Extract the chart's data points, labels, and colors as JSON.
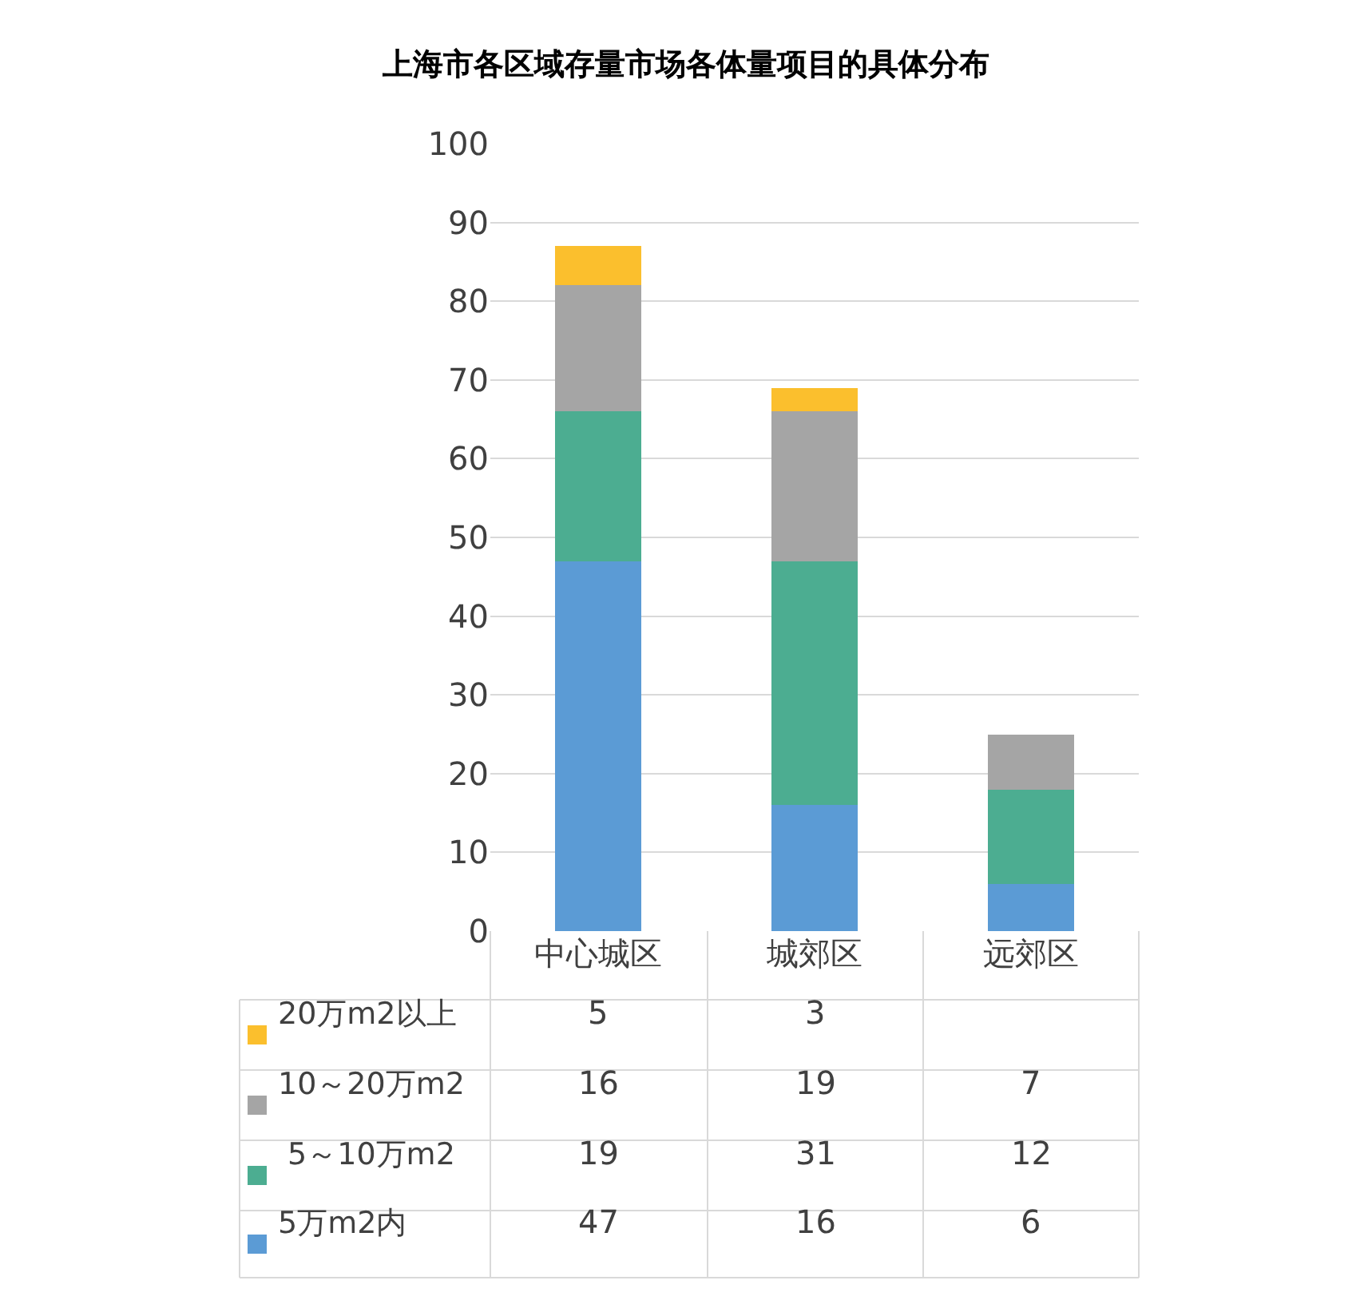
{
  "chart_data": {
    "type": "bar",
    "title": "上海市各区域存量市场各体量项目的具体分布",
    "stacked": true,
    "categories": [
      "中心城区",
      "城郊区",
      "远郊区"
    ],
    "series": [
      {
        "name": "5万m2内",
        "color": "#5b9bd5",
        "values": [
          47,
          16,
          6
        ]
      },
      {
        "name": " 5～10万m2",
        "color": "#4cad91",
        "values": [
          19,
          31,
          12
        ]
      },
      {
        "name": "10～20万m2",
        "color": "#a5a5a5",
        "values": [
          16,
          19,
          7
        ]
      },
      {
        "name": "20万m2以上",
        "color": "#fbbf2d",
        "values": [
          5,
          3,
          null
        ]
      }
    ],
    "ylim": [
      0,
      100
    ],
    "yticks": [
      0,
      10,
      20,
      30,
      40,
      50,
      60,
      70,
      80,
      90,
      100
    ],
    "grid": "y",
    "data_labels": true,
    "legend": "bottom"
  }
}
